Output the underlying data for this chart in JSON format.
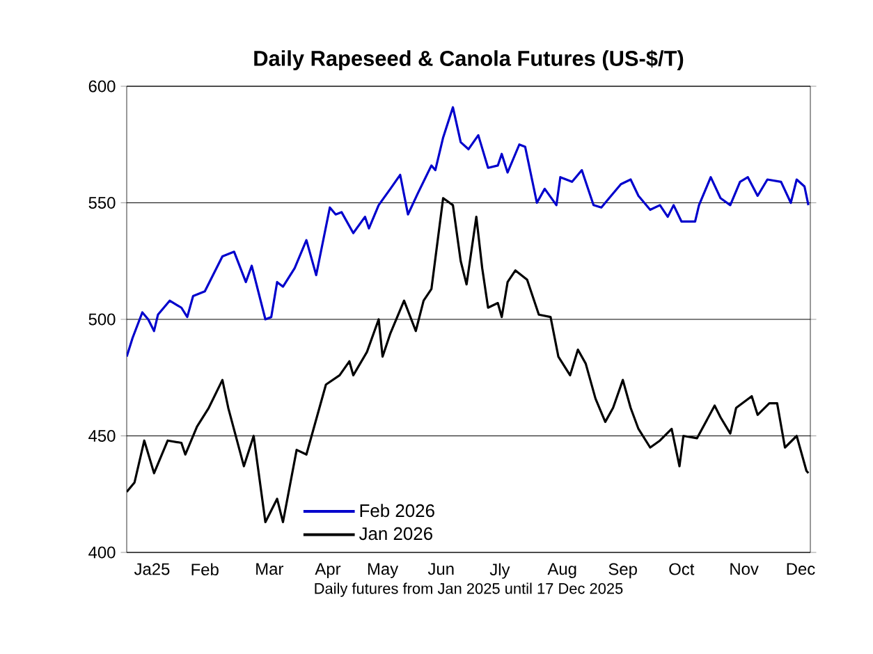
{
  "chart_data": {
    "type": "line",
    "title": "Daily Rapeseed & Canola Futures (US-$/T)",
    "xlabel": "Daily futures from Jan 2025 until 17 Dec 2025",
    "xlim": [
      "2025-01-01",
      "2025-12-17"
    ],
    "ylim": [
      400,
      600
    ],
    "yticks": [
      400,
      450,
      500,
      550,
      600
    ],
    "xticks": [
      {
        "value": "2025-01-14",
        "label": "Ja25"
      },
      {
        "value": "2025-02-10",
        "label": "Feb"
      },
      {
        "value": "2025-03-15",
        "label": "Mar"
      },
      {
        "value": "2025-04-14",
        "label": "Apr"
      },
      {
        "value": "2025-05-12",
        "label": "May"
      },
      {
        "value": "2025-06-11",
        "label": "Jun"
      },
      {
        "value": "2025-07-11",
        "label": "Jly"
      },
      {
        "value": "2025-08-12",
        "label": "Aug"
      },
      {
        "value": "2025-09-12",
        "label": "Sep"
      },
      {
        "value": "2025-10-12",
        "label": "Oct"
      },
      {
        "value": "2025-11-13",
        "label": "Nov"
      },
      {
        "value": "2025-12-12",
        "label": "Dec"
      }
    ],
    "grid": "y",
    "legend": "bottom",
    "marker": "none",
    "line_style": "solid",
    "series": [
      {
        "name": "Feb 2026",
        "color": "#0000cc",
        "x": [
          "2025-01-01",
          "2025-01-04",
          "2025-01-09",
          "2025-01-12",
          "2025-01-15",
          "2025-01-17",
          "2025-01-23",
          "2025-01-29",
          "2025-02-01",
          "2025-02-04",
          "2025-02-10",
          "2025-02-19",
          "2025-02-25",
          "2025-03-03",
          "2025-03-06",
          "2025-03-13",
          "2025-03-16",
          "2025-03-19",
          "2025-03-22",
          "2025-03-28",
          "2025-04-03",
          "2025-04-08",
          "2025-04-15",
          "2025-04-18",
          "2025-04-21",
          "2025-04-27",
          "2025-05-03",
          "2025-05-05",
          "2025-05-10",
          "2025-05-16",
          "2025-05-21",
          "2025-05-25",
          "2025-05-30",
          "2025-06-06",
          "2025-06-08",
          "2025-06-12",
          "2025-06-17",
          "2025-06-21",
          "2025-06-25",
          "2025-06-30",
          "2025-07-05",
          "2025-07-10",
          "2025-07-12",
          "2025-07-15",
          "2025-07-21",
          "2025-07-24",
          "2025-07-30",
          "2025-08-03",
          "2025-08-09",
          "2025-08-11",
          "2025-08-17",
          "2025-08-22",
          "2025-08-28",
          "2025-09-01",
          "2025-09-05",
          "2025-09-11",
          "2025-09-16",
          "2025-09-20",
          "2025-09-26",
          "2025-10-01",
          "2025-10-05",
          "2025-10-08",
          "2025-10-12",
          "2025-10-19",
          "2025-10-21",
          "2025-10-27",
          "2025-11-01",
          "2025-11-06",
          "2025-11-11",
          "2025-11-15",
          "2025-11-20",
          "2025-11-25",
          "2025-12-02",
          "2025-12-07",
          "2025-12-10",
          "2025-12-14",
          "2025-12-16"
        ],
        "values": [
          484,
          492,
          503,
          500,
          495,
          502,
          508,
          505,
          501,
          510,
          512,
          527,
          529,
          516,
          523,
          500,
          501,
          516,
          514,
          522,
          534,
          519,
          548,
          545,
          546,
          537,
          544,
          539,
          549,
          556,
          562,
          545,
          554,
          566,
          564,
          578,
          591,
          576,
          573,
          579,
          565,
          566,
          571,
          563,
          575,
          574,
          550,
          556,
          549,
          561,
          559,
          564,
          549,
          548,
          552,
          558,
          560,
          553,
          547,
          549,
          544,
          549,
          542,
          542,
          549,
          561,
          552,
          549,
          559,
          561,
          553,
          560,
          559,
          550,
          560,
          557,
          549
        ]
      },
      {
        "name": "Jan 2026",
        "color": "#000000",
        "x": [
          "2025-01-01",
          "2025-01-05",
          "2025-01-10",
          "2025-01-15",
          "2025-01-22",
          "2025-01-29",
          "2025-01-31",
          "2025-02-06",
          "2025-02-12",
          "2025-02-19",
          "2025-02-22",
          "2025-03-02",
          "2025-03-07",
          "2025-03-13",
          "2025-03-19",
          "2025-03-22",
          "2025-03-29",
          "2025-04-03",
          "2025-04-13",
          "2025-04-20",
          "2025-04-25",
          "2025-04-27",
          "2025-05-04",
          "2025-05-10",
          "2025-05-12",
          "2025-05-16",
          "2025-05-23",
          "2025-05-29",
          "2025-06-02",
          "2025-06-06",
          "2025-06-12",
          "2025-06-17",
          "2025-06-21",
          "2025-06-24",
          "2025-06-29",
          "2025-07-02",
          "2025-07-05",
          "2025-07-10",
          "2025-07-12",
          "2025-07-15",
          "2025-07-19",
          "2025-07-25",
          "2025-07-31",
          "2025-08-06",
          "2025-08-10",
          "2025-08-16",
          "2025-08-20",
          "2025-08-24",
          "2025-08-29",
          "2025-09-03",
          "2025-09-07",
          "2025-09-12",
          "2025-09-16",
          "2025-09-20",
          "2025-09-26",
          "2025-10-01",
          "2025-10-07",
          "2025-10-11",
          "2025-10-13",
          "2025-10-20",
          "2025-10-29",
          "2025-11-01",
          "2025-11-06",
          "2025-11-09",
          "2025-11-17",
          "2025-11-20",
          "2025-11-26",
          "2025-11-30",
          "2025-12-04",
          "2025-12-10",
          "2025-12-15",
          "2025-12-16"
        ],
        "values": [
          426,
          430,
          448,
          434,
          448,
          447,
          442,
          454,
          462,
          474,
          462,
          437,
          450,
          413,
          423,
          413,
          444,
          442,
          472,
          476,
          482,
          476,
          486,
          500,
          484,
          494,
          508,
          495,
          508,
          513,
          552,
          549,
          525,
          515,
          544,
          522,
          505,
          507,
          501,
          516,
          521,
          517,
          502,
          501,
          484,
          476,
          487,
          481,
          466,
          456,
          462,
          474,
          462,
          453,
          445,
          448,
          453,
          437,
          450,
          449,
          463,
          458,
          451,
          462,
          467,
          459,
          464,
          464,
          445,
          450,
          435,
          434
        ]
      }
    ]
  }
}
